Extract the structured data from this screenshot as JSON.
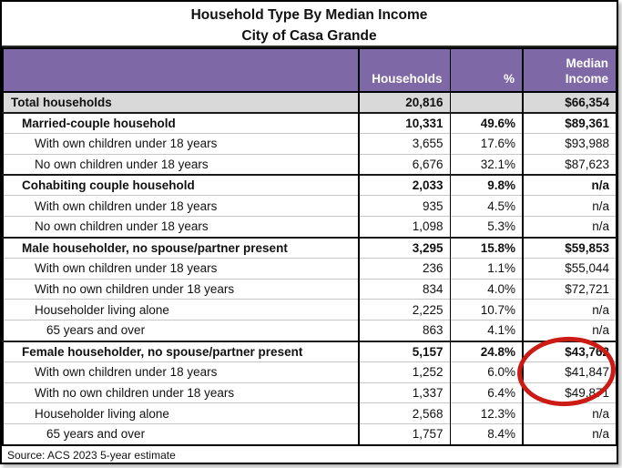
{
  "title": {
    "line1": "Household Type By Median Income",
    "line2": "City of Casa Grande"
  },
  "header": {
    "households": "Households",
    "percent": "%",
    "median_line1": "Median",
    "median_line2": "Income"
  },
  "source": {
    "text": "Source: ACS 2023 5-year estimate"
  },
  "annotation": {
    "type": "ellipse",
    "color": "#cc1a14",
    "circled_values": [
      "$43,762",
      "$41,847",
      "$49,871"
    ]
  },
  "colors": {
    "header_bg": "#7E68A6",
    "header_text": "#ffffff",
    "total_row_bg": "#d9d9d9",
    "border": "#000000",
    "subrow_line": "#c6c6c6",
    "annotation_red": "#cc1a14"
  },
  "chart_data": {
    "type": "table",
    "title": "Household Type By Median Income",
    "subtitle": "City of Casa Grande",
    "columns": [
      "",
      "Households",
      "%",
      "Median Income"
    ],
    "rows": [
      {
        "label": "Total households",
        "households": "20,816",
        "percent": "",
        "median": "$66,354",
        "style": "total"
      },
      {
        "label": "Married-couple household",
        "households": "10,331",
        "percent": "49.6%",
        "median": "$89,361",
        "style": "group"
      },
      {
        "label": "With own children under 18 years",
        "households": "3,655",
        "percent": "17.6%",
        "median": "$93,988",
        "style": "sub"
      },
      {
        "label": "No own children under 18 years",
        "households": "6,676",
        "percent": "32.1%",
        "median": "$87,623",
        "style": "sub"
      },
      {
        "label": "Cohabiting couple household",
        "households": "2,033",
        "percent": "9.8%",
        "median": "n/a",
        "style": "group"
      },
      {
        "label": "With own children under 18 years",
        "households": "935",
        "percent": "4.5%",
        "median": "n/a",
        "style": "sub"
      },
      {
        "label": "No own children under 18 years",
        "households": "1,098",
        "percent": "5.3%",
        "median": "n/a",
        "style": "sub"
      },
      {
        "label": "Male householder, no spouse/partner present",
        "households": "3,295",
        "percent": "15.8%",
        "median": "$59,853",
        "style": "group"
      },
      {
        "label": "With own children under 18 years",
        "households": "236",
        "percent": "1.1%",
        "median": "$55,044",
        "style": "sub"
      },
      {
        "label": "With no own children under 18 years",
        "households": "834",
        "percent": "4.0%",
        "median": "$72,721",
        "style": "sub"
      },
      {
        "label": "Householder living alone",
        "households": "2,225",
        "percent": "10.7%",
        "median": "n/a",
        "style": "sub"
      },
      {
        "label": "65 years and over",
        "households": "863",
        "percent": "4.1%",
        "median": "n/a",
        "style": "sub2"
      },
      {
        "label": "Female householder, no spouse/partner present",
        "households": "5,157",
        "percent": "24.8%",
        "median": "$43,762",
        "style": "group"
      },
      {
        "label": "With own children under 18 years",
        "households": "1,252",
        "percent": "6.0%",
        "median": "$41,847",
        "style": "sub"
      },
      {
        "label": "With no own children under 18 years",
        "households": "1,337",
        "percent": "6.4%",
        "median": "$49,871",
        "style": "sub"
      },
      {
        "label": "Householder living alone",
        "households": "2,568",
        "percent": "12.3%",
        "median": "n/a",
        "style": "sub"
      },
      {
        "label": "65 years and over",
        "households": "1,757",
        "percent": "8.4%",
        "median": "n/a",
        "style": "sub2"
      }
    ],
    "source": "Source: ACS 2023 5-year estimate"
  }
}
